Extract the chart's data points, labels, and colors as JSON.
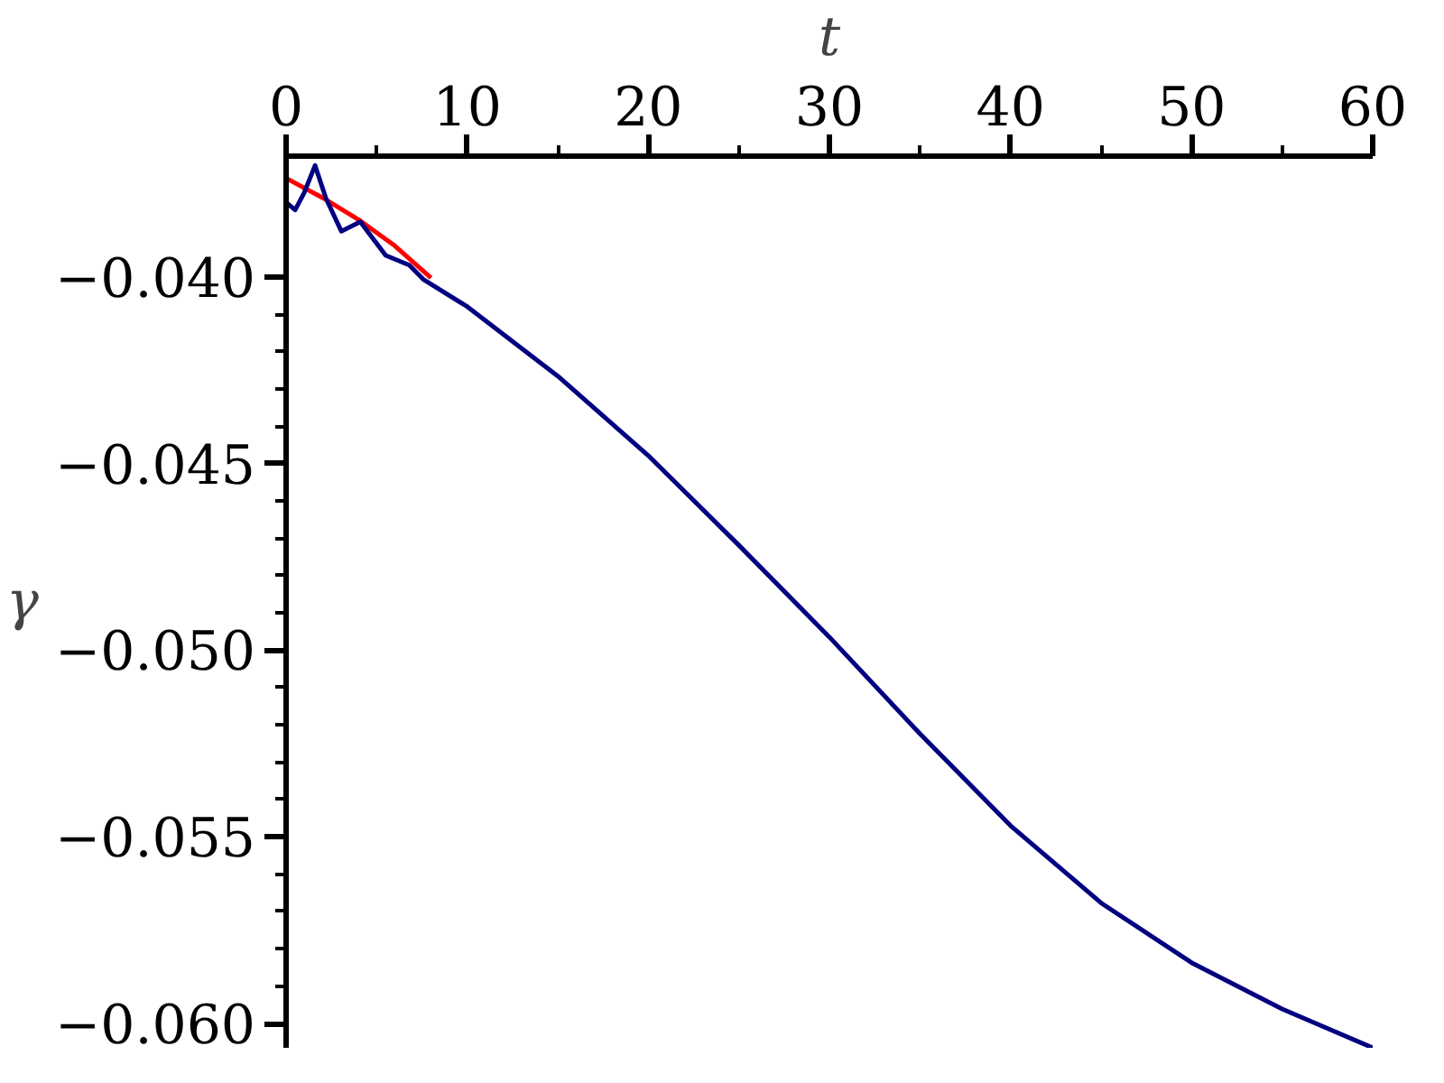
{
  "chart_data": {
    "type": "line",
    "xlabel": "t",
    "ylabel": "γ",
    "xlim": [
      0,
      60
    ],
    "ylim": [
      -0.06065,
      -0.03677
    ],
    "xticks": [
      0,
      10,
      20,
      30,
      40,
      50,
      60
    ],
    "yticks": [
      {
        "value": -0.06,
        "label": "−0.060"
      },
      {
        "value": -0.055,
        "label": "−0.055"
      },
      {
        "value": -0.05,
        "label": "−0.050"
      },
      {
        "value": -0.045,
        "label": "−0.045"
      },
      {
        "value": -0.04,
        "label": "−0.040"
      }
    ],
    "grid": false,
    "marker": "none",
    "line_style": "solid",
    "series": [
      {
        "color": "#ff0000",
        "x": [
          0,
          2,
          4,
          6,
          8
        ],
        "values": [
          -0.03736,
          -0.03788,
          -0.03847,
          -0.03917,
          -0.04003
        ]
      },
      {
        "color": "#000080",
        "x": [
          0,
          0.5,
          1,
          1.6,
          2.2,
          3.05,
          4.1,
          5.5,
          6.8,
          7.6,
          10,
          15,
          20,
          25,
          30,
          35,
          40,
          45,
          50,
          55,
          60
        ],
        "values": [
          -0.03801,
          -0.03821,
          -0.03775,
          -0.03702,
          -0.0379,
          -0.03878,
          -0.03853,
          -0.03943,
          -0.03969,
          -0.04008,
          -0.0408,
          -0.04266,
          -0.04479,
          -0.04719,
          -0.04965,
          -0.05224,
          -0.0547,
          -0.05677,
          -0.05837,
          -0.05961,
          -0.06065
        ]
      }
    ]
  }
}
